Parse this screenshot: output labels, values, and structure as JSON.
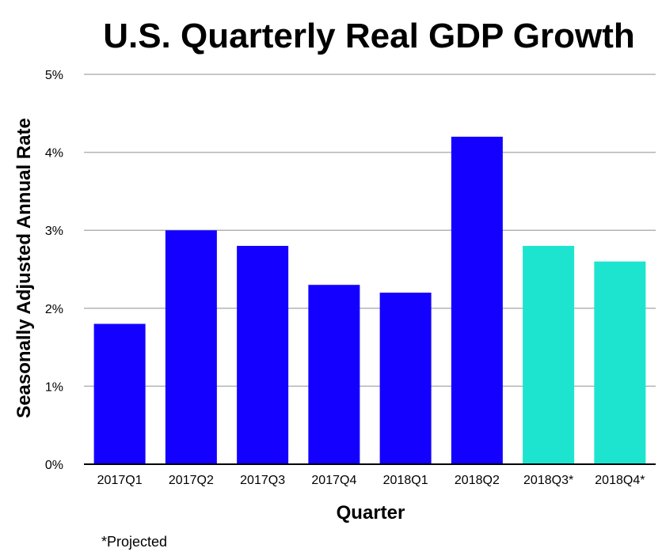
{
  "chart_data": {
    "type": "bar",
    "title": "U.S. Quarterly Real GDP Growth",
    "xlabel": "Quarter",
    "ylabel": "Seasonally Adjusted Annual Rate",
    "categories": [
      "2017Q1",
      "2017Q2",
      "2017Q3",
      "2017Q4",
      "2018Q1",
      "2018Q2",
      "2018Q3*",
      "2018Q4*"
    ],
    "values": [
      1.8,
      3.0,
      2.8,
      2.3,
      2.2,
      4.2,
      2.8,
      2.6
    ],
    "projected": [
      false,
      false,
      false,
      false,
      false,
      false,
      true,
      true
    ],
    "colors": {
      "actual": "#1400FF",
      "projected": "#1DE4CF",
      "grid": "#b3b3b3",
      "baseline": "#000000"
    },
    "ylim": [
      0,
      5
    ],
    "yticks": [
      0,
      1,
      2,
      3,
      4,
      5
    ],
    "ytick_labels": [
      "0%",
      "1%",
      "2%",
      "3%",
      "4%",
      "5%"
    ],
    "grid": true,
    "legend": "none",
    "footnote": "*Projected"
  }
}
